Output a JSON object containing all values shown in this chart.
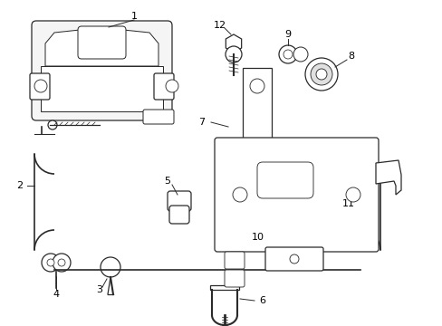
{
  "background_color": "#ffffff",
  "line_color": "#2a2a2a",
  "text_color": "#000000",
  "fig_width": 4.89,
  "fig_height": 3.6,
  "dpi": 100
}
